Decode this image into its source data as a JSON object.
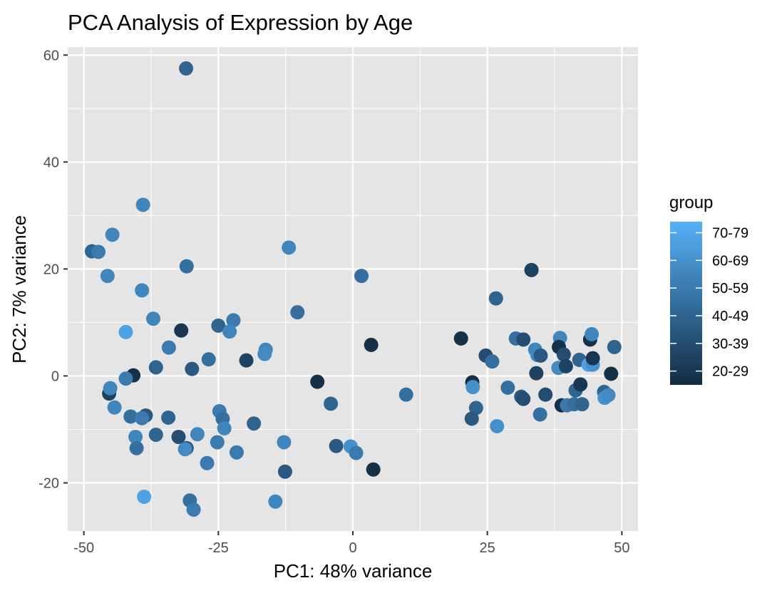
{
  "chart_data": {
    "type": "scatter",
    "title": "PCA Analysis of Expression by Age",
    "xlabel": "PC1: 48% variance",
    "ylabel": "PC2: 7% variance",
    "xlim": [
      -53,
      53
    ],
    "ylim": [
      -29,
      61.5
    ],
    "xticks": [
      -50,
      -25,
      0,
      25,
      50
    ],
    "xtick_labels": [
      "-50",
      "-25",
      "0",
      "25",
      "50"
    ],
    "yticks": [
      -20,
      0,
      20,
      40,
      60
    ],
    "ytick_labels": [
      "-20",
      "0",
      "20",
      "40",
      "60"
    ],
    "grid": true,
    "panel_background": "#E5E5E5",
    "grid_color": "#FFFFFF",
    "legend": {
      "title": "group",
      "position": "right",
      "type": "colorbar",
      "labels": [
        "70-79",
        "60-69",
        "50-59",
        "40-49",
        "30-39",
        "20-29"
      ],
      "values": [
        75,
        65,
        55,
        45,
        35,
        25
      ],
      "low_color": "#132B43",
      "high_color": "#56B1F7"
    },
    "points": [
      {
        "x": -31,
        "y": 57.5,
        "g": 45
      },
      {
        "x": -39,
        "y": 32,
        "g": 60
      },
      {
        "x": -48.5,
        "y": 23.3,
        "g": 45
      },
      {
        "x": -47.3,
        "y": 23.2,
        "g": 55
      },
      {
        "x": -44.7,
        "y": 26.4,
        "g": 60
      },
      {
        "x": -45.6,
        "y": 18.7,
        "g": 60
      },
      {
        "x": -30.9,
        "y": 20.5,
        "g": 50
      },
      {
        "x": -39.2,
        "y": 16,
        "g": 60
      },
      {
        "x": -11.9,
        "y": 24,
        "g": 60
      },
      {
        "x": 1.6,
        "y": 18.7,
        "g": 50
      },
      {
        "x": -42.2,
        "y": 8.2,
        "g": 72
      },
      {
        "x": -37.1,
        "y": 10.7,
        "g": 60
      },
      {
        "x": -31.9,
        "y": 8.5,
        "g": 25
      },
      {
        "x": -25,
        "y": 9.4,
        "g": 45
      },
      {
        "x": -22.2,
        "y": 10.4,
        "g": 55
      },
      {
        "x": -22.9,
        "y": 8.3,
        "g": 60
      },
      {
        "x": -10.3,
        "y": 11.9,
        "g": 50
      },
      {
        "x": -34.2,
        "y": 5.3,
        "g": 55
      },
      {
        "x": -36.6,
        "y": 1.6,
        "g": 45
      },
      {
        "x": -29.9,
        "y": 1.3,
        "g": 40
      },
      {
        "x": -26.8,
        "y": 3.1,
        "g": 50
      },
      {
        "x": -19.8,
        "y": 2.9,
        "g": 30
      },
      {
        "x": -16.2,
        "y": 4.9,
        "g": 60
      },
      {
        "x": -16.4,
        "y": 4.1,
        "g": 62
      },
      {
        "x": -40.8,
        "y": 0.1,
        "g": 22
      },
      {
        "x": -42.2,
        "y": -0.5,
        "g": 55
      },
      {
        "x": -45.3,
        "y": -3.3,
        "g": 30
      },
      {
        "x": -45.1,
        "y": -2.3,
        "g": 60
      },
      {
        "x": -44.3,
        "y": -5.9,
        "g": 60
      },
      {
        "x": -41.3,
        "y": -7.6,
        "g": 50
      },
      {
        "x": -38.5,
        "y": -7.4,
        "g": 40
      },
      {
        "x": -39.2,
        "y": -7.9,
        "g": 55
      },
      {
        "x": -34.3,
        "y": -7.8,
        "g": 45
      },
      {
        "x": -40.4,
        "y": -11.4,
        "g": 60
      },
      {
        "x": -36.6,
        "y": -11,
        "g": 45
      },
      {
        "x": -32.4,
        "y": -11.4,
        "g": 35
      },
      {
        "x": -28.9,
        "y": -10.9,
        "g": 60
      },
      {
        "x": -40.2,
        "y": -13.5,
        "g": 50
      },
      {
        "x": -30.9,
        "y": -13.5,
        "g": 40
      },
      {
        "x": -31.2,
        "y": -13.7,
        "g": 62
      },
      {
        "x": -25.2,
        "y": -12.4,
        "g": 55
      },
      {
        "x": -24.8,
        "y": -6.6,
        "g": 55
      },
      {
        "x": -24.2,
        "y": -8,
        "g": 50
      },
      {
        "x": -23.9,
        "y": -9.8,
        "g": 60
      },
      {
        "x": -27.1,
        "y": -16.3,
        "g": 55
      },
      {
        "x": -18.4,
        "y": -8.9,
        "g": 45
      },
      {
        "x": -21.6,
        "y": -14.3,
        "g": 55
      },
      {
        "x": -12.8,
        "y": -12.4,
        "g": 60
      },
      {
        "x": -12.6,
        "y": -17.9,
        "g": 40
      },
      {
        "x": -14.4,
        "y": -23.5,
        "g": 60
      },
      {
        "x": -30.3,
        "y": -23.3,
        "g": 50
      },
      {
        "x": -29.6,
        "y": -25,
        "g": 55
      },
      {
        "x": -38.8,
        "y": -22.6,
        "g": 72
      },
      {
        "x": -6.6,
        "y": -1.1,
        "g": 22
      },
      {
        "x": 3.4,
        "y": 5.8,
        "g": 22
      },
      {
        "x": -4.1,
        "y": -5.2,
        "g": 45
      },
      {
        "x": -3.1,
        "y": -13.1,
        "g": 40
      },
      {
        "x": -0.4,
        "y": -13.2,
        "g": 65
      },
      {
        "x": 0.6,
        "y": -14.4,
        "g": 55
      },
      {
        "x": 3.8,
        "y": -17.5,
        "g": 22
      },
      {
        "x": 9.9,
        "y": -3.5,
        "g": 50
      },
      {
        "x": 20.1,
        "y": 7,
        "g": 22
      },
      {
        "x": 26.6,
        "y": 14.5,
        "g": 45
      },
      {
        "x": 33.2,
        "y": 19.8,
        "g": 30
      },
      {
        "x": 24.7,
        "y": 3.8,
        "g": 35
      },
      {
        "x": 25.9,
        "y": 2.7,
        "g": 50
      },
      {
        "x": 22.2,
        "y": -1.2,
        "g": 22
      },
      {
        "x": 22.3,
        "y": -2.1,
        "g": 65
      },
      {
        "x": 22.9,
        "y": -6,
        "g": 45
      },
      {
        "x": 22.1,
        "y": -8,
        "g": 40
      },
      {
        "x": 26.8,
        "y": -9.4,
        "g": 65
      },
      {
        "x": 28.8,
        "y": -2.2,
        "g": 50
      },
      {
        "x": 30.3,
        "y": 7,
        "g": 50
      },
      {
        "x": 31.7,
        "y": 6.8,
        "g": 35
      },
      {
        "x": 31.3,
        "y": -3.9,
        "g": 40
      },
      {
        "x": 31.7,
        "y": -4.3,
        "g": 35
      },
      {
        "x": 33.9,
        "y": 4.9,
        "g": 60
      },
      {
        "x": 34.3,
        "y": 3.9,
        "g": 62
      },
      {
        "x": 34.9,
        "y": 3.8,
        "g": 40
      },
      {
        "x": 34.1,
        "y": 0.5,
        "g": 30
      },
      {
        "x": 35.8,
        "y": -3.5,
        "g": 35
      },
      {
        "x": 34.8,
        "y": -7.2,
        "g": 50
      },
      {
        "x": 38.5,
        "y": 7.1,
        "g": 60
      },
      {
        "x": 38.3,
        "y": 5.4,
        "g": 22
      },
      {
        "x": 39.2,
        "y": 4,
        "g": 35
      },
      {
        "x": 38.2,
        "y": 1.5,
        "g": 62
      },
      {
        "x": 39.6,
        "y": 1.8,
        "g": 30
      },
      {
        "x": 38.8,
        "y": -5.5,
        "g": 22
      },
      {
        "x": 39.8,
        "y": -5.5,
        "g": 55
      },
      {
        "x": 41.1,
        "y": -5.3,
        "g": 50
      },
      {
        "x": 41.4,
        "y": -2.7,
        "g": 45
      },
      {
        "x": 42.3,
        "y": -1.6,
        "g": 25
      },
      {
        "x": 42.1,
        "y": 3,
        "g": 45
      },
      {
        "x": 42.6,
        "y": -5.3,
        "g": 45
      },
      {
        "x": 44.1,
        "y": 6.8,
        "g": 22
      },
      {
        "x": 44.4,
        "y": 7.8,
        "g": 60
      },
      {
        "x": 43.8,
        "y": 2.1,
        "g": 72
      },
      {
        "x": 44.6,
        "y": 2.1,
        "g": 65
      },
      {
        "x": 44.6,
        "y": 3.3,
        "g": 25
      },
      {
        "x": 46.7,
        "y": -3,
        "g": 45
      },
      {
        "x": 46.8,
        "y": -4.1,
        "g": 65
      },
      {
        "x": 47.5,
        "y": -3.6,
        "g": 62
      },
      {
        "x": 48.0,
        "y": 0.4,
        "g": 22
      },
      {
        "x": 48.6,
        "y": 5.4,
        "g": 45
      }
    ]
  }
}
